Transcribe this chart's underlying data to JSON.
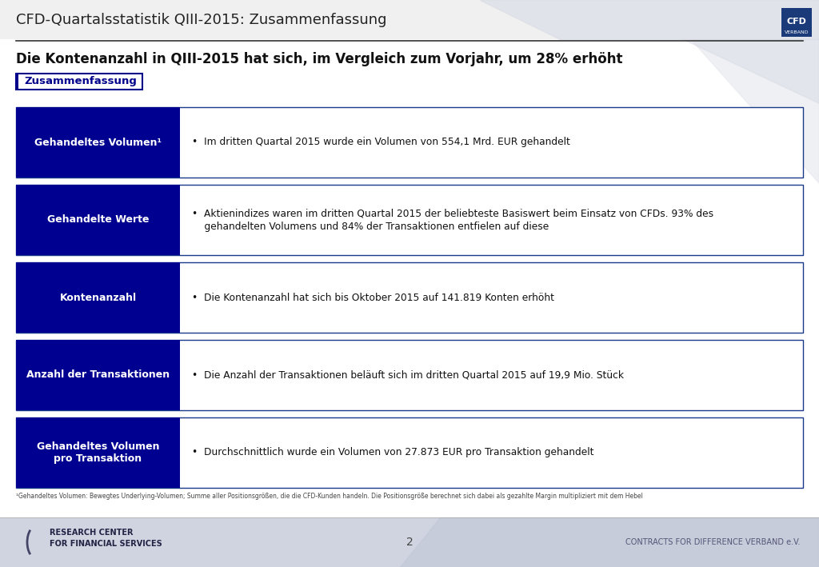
{
  "title_header": "CFD-Quartalsstatistik QIII-2015: Zusammenfassung",
  "subtitle": "Die Kontenanzahl in QIII-2015 hat sich, im Vergleich zum Vorjahr, um 28% erhöht",
  "section_label": "Zusammenfassung",
  "main_bg": "#ffffff",
  "dark_blue": "#00008B",
  "rows": [
    {
      "label": "Gehandeltes Volumen¹",
      "text": "•  Im dritten Quartal 2015 wurde ein Volumen von 554,1 Mrd. EUR gehandelt",
      "multiline": false
    },
    {
      "label": "Gehandelte Werte",
      "text": "•  Aktienindizes waren im dritten Quartal 2015 der beliebteste Basiswert beim Einsatz von CFDs. 93% des\n    gehandelten Volumens und 84% der Transaktionen entfielen auf diese",
      "multiline": true
    },
    {
      "label": "Kontenanzahl",
      "text": "•  Die Kontenanzahl hat sich bis Oktober 2015 auf 141.819 Konten erhöht",
      "multiline": false
    },
    {
      "label": "Anzahl der Transaktionen",
      "text": "•  Die Anzahl der Transaktionen beläuft sich im dritten Quartal 2015 auf 19,9 Mio. Stück",
      "multiline": false
    },
    {
      "label": "Gehandeltes Volumen\npro Transaktion",
      "text": "•  Durchschnittlich wurde ein Volumen von 27.873 EUR pro Transaktion gehandelt",
      "multiline": false
    }
  ],
  "footnote": "¹Gehandeltes Volumen: Bewegtes Underlying-Volumen; Summe aller Positionsgrößen, die die CFD-Kunden handeln. Die Positionsgröße berechnet sich dabei als gezahlte Margin multipliziert mit dem Hebel",
  "footer_left_line1": "RESEARCH CENTER",
  "footer_left_line2": "FOR FINANCIAL SERVICES",
  "footer_center": "2",
  "footer_right": "CONTRACTS FOR DIFFERENCE VERBAND e.V.",
  "cfd_logo_text": "CFD",
  "cfd_logo_sub": "VERBAND"
}
